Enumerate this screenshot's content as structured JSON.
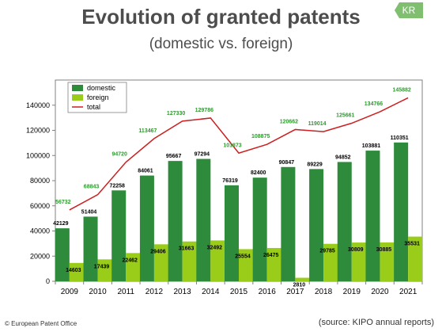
{
  "header": {
    "title": "Evolution of granted patents",
    "subtitle": "(domestic vs. foreign)",
    "badge": "KR"
  },
  "footer": {
    "copyright": "© European Patent Office",
    "source": "(source: KIPO annual reports)"
  },
  "colors": {
    "domestic": "#2e8b3c",
    "foreign": "#9acd19",
    "total": "#cc1f1f",
    "total_label": "#2e9b2e",
    "badge": "#7fbf6f"
  },
  "chart_data": {
    "type": "bar",
    "categories": [
      "2009",
      "2010",
      "2011",
      "2012",
      "2013",
      "2014",
      "2015",
      "2016",
      "2017",
      "2018",
      "2019",
      "2020",
      "2021"
    ],
    "series": [
      {
        "name": "domestic",
        "type": "bar",
        "values": [
          42129,
          51404,
          72258,
          84061,
          95667,
          97294,
          76319,
          82400,
          90847,
          89229,
          94852,
          103881,
          110351
        ]
      },
      {
        "name": "foreign",
        "type": "bar",
        "values": [
          14603,
          17439,
          22462,
          29406,
          31663,
          32492,
          25554,
          26475,
          2810,
          29785,
          30809,
          30885,
          35531
        ]
      },
      {
        "name": "total",
        "type": "line",
        "values": [
          56732,
          68843,
          94720,
          113467,
          127330,
          129786,
          101873,
          108875,
          120662,
          119014,
          125661,
          134766,
          145882
        ]
      }
    ],
    "yticks": [
      "0",
      "20000",
      "40000",
      "60000",
      "80000",
      "100000",
      "120000",
      "140000"
    ],
    "ylim": [
      0,
      160000
    ],
    "legend": {
      "position": "top-left",
      "entries": [
        "domestic",
        "foreign",
        "total"
      ]
    },
    "grid": false,
    "data_labels": true
  }
}
